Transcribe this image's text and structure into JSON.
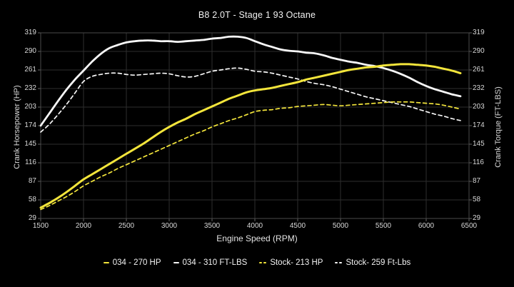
{
  "chart_data": {
    "type": "line",
    "title": "B8 2.0T - Stage 1 93 Octane",
    "xlabel": "Engine Speed (RPM)",
    "ylabel_left": "Crank Horsepower (HP)",
    "ylabel_right": "Crank Torque (FT-LBS)",
    "xlim": [
      1500,
      6500
    ],
    "ylim": [
      29,
      319
    ],
    "x_ticks": [
      1500,
      2000,
      2500,
      3000,
      3500,
      4000,
      4500,
      5000,
      5500,
      6000,
      6500
    ],
    "y_ticks": [
      29,
      58,
      87,
      116,
      145,
      174,
      203,
      232,
      261,
      290,
      319
    ],
    "grid": true,
    "legend_position": "bottom",
    "background_color": "#000000",
    "grid_color": "#2e2e2e",
    "spine_color": "#4a4a4a",
    "x_rpm": [
      1500,
      1600,
      1700,
      1800,
      1900,
      2000,
      2100,
      2200,
      2300,
      2400,
      2500,
      2600,
      2700,
      2800,
      2900,
      3000,
      3100,
      3200,
      3300,
      3400,
      3500,
      3600,
      3700,
      3800,
      3900,
      4000,
      4100,
      4200,
      4300,
      4400,
      4500,
      4600,
      4700,
      4800,
      4900,
      5000,
      5100,
      5200,
      5300,
      5400,
      5500,
      5600,
      5700,
      5800,
      5900,
      6000,
      6100,
      6200,
      6300,
      6400
    ],
    "series": [
      {
        "name": "034 - 270 HP",
        "color": "#f3e53b",
        "style": "solid",
        "values": [
          46,
          53,
          61,
          70,
          80,
          90,
          98,
          106,
          114,
          122,
          130,
          138,
          146,
          155,
          164,
          172,
          179,
          185,
          192,
          198,
          204,
          210,
          216,
          221,
          226,
          229,
          231,
          233,
          236,
          239,
          242,
          246,
          249,
          252,
          255,
          258,
          261,
          263,
          265,
          266,
          268,
          269,
          270,
          270,
          269,
          268,
          266,
          263,
          260,
          256
        ]
      },
      {
        "name": "034 - 310 FT-LBS",
        "color": "#f7f7f7",
        "style": "solid",
        "values": [
          174,
          193,
          212,
          230,
          246,
          260,
          274,
          286,
          295,
          300,
          304,
          306,
          307,
          307,
          306,
          306,
          305,
          306,
          307,
          308,
          310,
          311,
          313,
          313,
          311,
          306,
          301,
          297,
          293,
          291,
          290,
          288,
          287,
          284,
          280,
          277,
          274,
          272,
          269,
          267,
          264,
          260,
          255,
          249,
          242,
          236,
          231,
          227,
          223,
          220
        ]
      },
      {
        "name": "Stock- 213 HP",
        "color": "#f3e53b",
        "style": "dashed",
        "values": [
          43,
          49,
          56,
          63,
          71,
          80,
          87,
          94,
          100,
          107,
          113,
          119,
          125,
          131,
          137,
          143,
          149,
          155,
          161,
          166,
          172,
          177,
          182,
          186,
          191,
          196,
          198,
          199,
          201,
          202,
          204,
          205,
          206,
          207,
          206,
          205,
          206,
          207,
          208,
          209,
          210,
          211,
          211,
          211,
          210,
          209,
          208,
          206,
          203,
          200
        ]
      },
      {
        "name": "Stock- 259 Ft-Lbs",
        "color": "#f7f7f7",
        "style": "dashed",
        "values": [
          164,
          176,
          191,
          207,
          225,
          243,
          251,
          254,
          256,
          256,
          254,
          253,
          254,
          255,
          256,
          255,
          252,
          250,
          251,
          255,
          259,
          261,
          263,
          264,
          262,
          259,
          258,
          256,
          253,
          250,
          247,
          243,
          240,
          238,
          235,
          231,
          227,
          223,
          219,
          216,
          213,
          210,
          207,
          204,
          200,
          196,
          192,
          189,
          185,
          182
        ]
      }
    ]
  }
}
